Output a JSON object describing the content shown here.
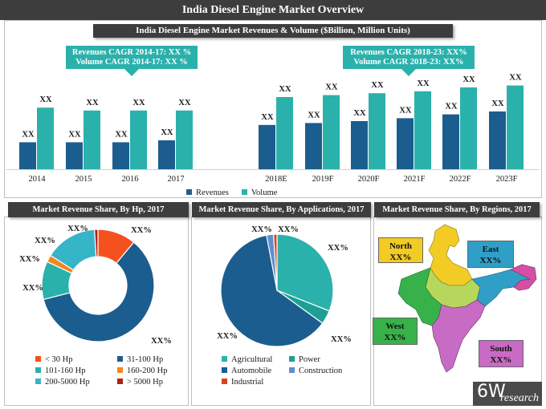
{
  "title": "India Diesel Engine Market Overview",
  "top_chart": {
    "subtitle": "India Diesel Engine Market Revenues & Volume ($Billion, Million Units)",
    "callout_left": [
      "Revenues CAGR 2014-17: XX %",
      "Volume CAGR 2014-17: XX %"
    ],
    "callout_right": [
      "Revenues CAGR 2018-23: XX%",
      "Volume CAGR 2018-23: XX%"
    ],
    "legend": [
      "Revenues",
      "Volume"
    ]
  },
  "chart_data": [
    {
      "type": "bar",
      "title": "India Diesel Engine Market Revenues & Volume ($Billion, Million Units)",
      "categories": [
        "2014",
        "2015",
        "2016",
        "2017",
        "2018E",
        "2019F",
        "2020F",
        "2021F",
        "2022F",
        "2023F"
      ],
      "series": [
        {
          "name": "Revenues",
          "color": "#1c5d8f",
          "values": [
            28,
            28,
            28,
            30,
            46,
            48,
            50,
            53,
            57,
            60
          ],
          "labels": [
            "XX",
            "XX",
            "XX",
            "XX",
            "XX",
            "XX",
            "XX",
            "XX",
            "XX",
            "XX"
          ]
        },
        {
          "name": "Volume",
          "color": "#2bb1ac",
          "values": [
            64,
            61,
            61,
            61,
            75,
            77,
            79,
            81,
            85,
            87
          ],
          "labels": [
            "XX",
            "XX",
            "XX",
            "XX",
            "XX",
            "XX",
            "XX",
            "XX",
            "XX",
            "XX"
          ]
        }
      ],
      "ylim": [
        0,
        100
      ],
      "grid": false,
      "xlabel": "",
      "ylabel": "",
      "legend": "bottom"
    },
    {
      "type": "pie",
      "title": "Market Revenue Share, By Hp, 2017",
      "donut": true,
      "categories": [
        "< 30 Hp",
        "31-100 Hp",
        "101-160 Hp",
        "160-200 Hp",
        "200-5000 Hp",
        "> 5000 Hp"
      ],
      "values": [
        11,
        60,
        11,
        2,
        15,
        1
      ],
      "colors": [
        "#f4511e",
        "#1c5d8f",
        "#2bb1ac",
        "#f4861e",
        "#35b5c7",
        "#b52010"
      ],
      "labels": [
        "XX%",
        "XX%",
        "XX%",
        "XX%",
        "XX%",
        "XX%"
      ]
    },
    {
      "type": "pie",
      "title": "Market Revenue Share, By Applications, 2017",
      "donut": false,
      "categories": [
        "Agricultural",
        "Power",
        "Automobile",
        "Construction",
        "Industrial"
      ],
      "values": [
        31,
        4,
        62,
        2,
        1
      ],
      "colors": [
        "#2bb1ac",
        "#1e9f96",
        "#1c5d8f",
        "#5f8ed0",
        "#e0401a"
      ],
      "labels": [
        "XX%",
        "XX%",
        "XX%",
        "XX%",
        "XX%"
      ]
    }
  ],
  "panels": {
    "hp_title": "Market Revenue Share, By Hp, 2017",
    "app_title": "Market Revenue Share, By Applications, 2017",
    "region_title": "Market Revenue Share, By Regions, 2017"
  },
  "regions": {
    "north": {
      "name": "North",
      "value": "XX%",
      "color": "#f2cb24"
    },
    "east": {
      "name": "East",
      "value": "XX%",
      "color": "#2f9fc8"
    },
    "west": {
      "name": "West",
      "value": "XX%",
      "color": "#37b24a"
    },
    "south": {
      "name": "South",
      "value": "XX%",
      "color": "#c86bc4"
    }
  },
  "logo": {
    "main": "6W",
    "sub": "research"
  }
}
